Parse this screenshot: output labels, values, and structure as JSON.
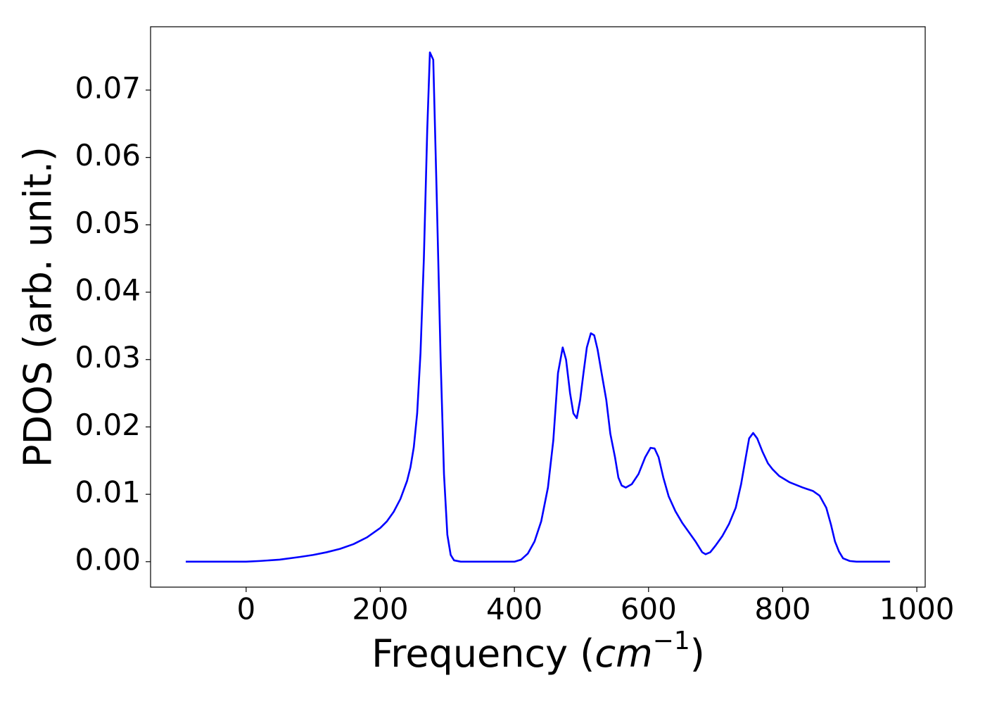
{
  "chart_data": {
    "type": "line",
    "xlabel": [
      "Frequency (",
      "cm",
      "−1",
      ")"
    ],
    "ylabel": "PDOS (arb. unit.)",
    "x": [
      -90,
      -50,
      0,
      20,
      50,
      80,
      100,
      120,
      140,
      160,
      180,
      200,
      210,
      220,
      230,
      240,
      245,
      250,
      255,
      260,
      265,
      270,
      274,
      279,
      284,
      290,
      295,
      300,
      305,
      310,
      320,
      400,
      410,
      420,
      430,
      440,
      450,
      458,
      465,
      472,
      477,
      483,
      488,
      493,
      498,
      503,
      508,
      514,
      519,
      524,
      530,
      537,
      543,
      550,
      555,
      560,
      566,
      575,
      585,
      595,
      603,
      609,
      615,
      622,
      630,
      640,
      650,
      660,
      670,
      680,
      685,
      692,
      700,
      710,
      720,
      730,
      738,
      745,
      750,
      756,
      762,
      770,
      778,
      785,
      795,
      810,
      830,
      845,
      855,
      865,
      872,
      878,
      884,
      890,
      900,
      910,
      960
    ],
    "series": [
      {
        "color": "#0000ff",
        "values": [
          0,
          0,
          0,
          0.0001,
          0.0003,
          0.0007,
          0.001,
          0.0014,
          0.0019,
          0.0026,
          0.0036,
          0.005,
          0.006,
          0.0074,
          0.0093,
          0.012,
          0.014,
          0.017,
          0.022,
          0.031,
          0.045,
          0.064,
          0.0756,
          0.0745,
          0.055,
          0.03,
          0.013,
          0.004,
          0.001,
          0.0002,
          0,
          0,
          0.0003,
          0.0012,
          0.003,
          0.006,
          0.011,
          0.018,
          0.028,
          0.0318,
          0.03,
          0.025,
          0.022,
          0.0213,
          0.024,
          0.028,
          0.0318,
          0.0339,
          0.0336,
          0.0315,
          0.028,
          0.024,
          0.019,
          0.0155,
          0.0125,
          0.0113,
          0.011,
          0.0115,
          0.013,
          0.0155,
          0.0169,
          0.0168,
          0.0155,
          0.0125,
          0.0097,
          0.0075,
          0.0058,
          0.0044,
          0.003,
          0.0014,
          0.0011,
          0.0014,
          0.0024,
          0.0038,
          0.0056,
          0.008,
          0.0115,
          0.0155,
          0.0183,
          0.0191,
          0.0183,
          0.0163,
          0.0146,
          0.0137,
          0.0127,
          0.0118,
          0.011,
          0.0105,
          0.0098,
          0.008,
          0.0055,
          0.003,
          0.0015,
          0.0005,
          0.0001,
          0,
          0
        ]
      }
    ],
    "xlim": [
      -142.5,
      1012.5
    ],
    "xticks": [
      0,
      200,
      400,
      600,
      800,
      1000
    ],
    "ylim": [
      -0.00378,
      0.0794
    ],
    "yticks": [
      {
        "value": 0,
        "label": "0.00"
      },
      {
        "value": 0.01,
        "label": "0.01"
      },
      {
        "value": 0.02,
        "label": "0.02"
      },
      {
        "value": 0.03,
        "label": "0.03"
      },
      {
        "value": 0.04,
        "label": "0.04"
      },
      {
        "value": 0.05,
        "label": "0.05"
      },
      {
        "value": 0.06,
        "label": "0.06"
      },
      {
        "value": 0.07,
        "label": "0.07"
      }
    ]
  }
}
